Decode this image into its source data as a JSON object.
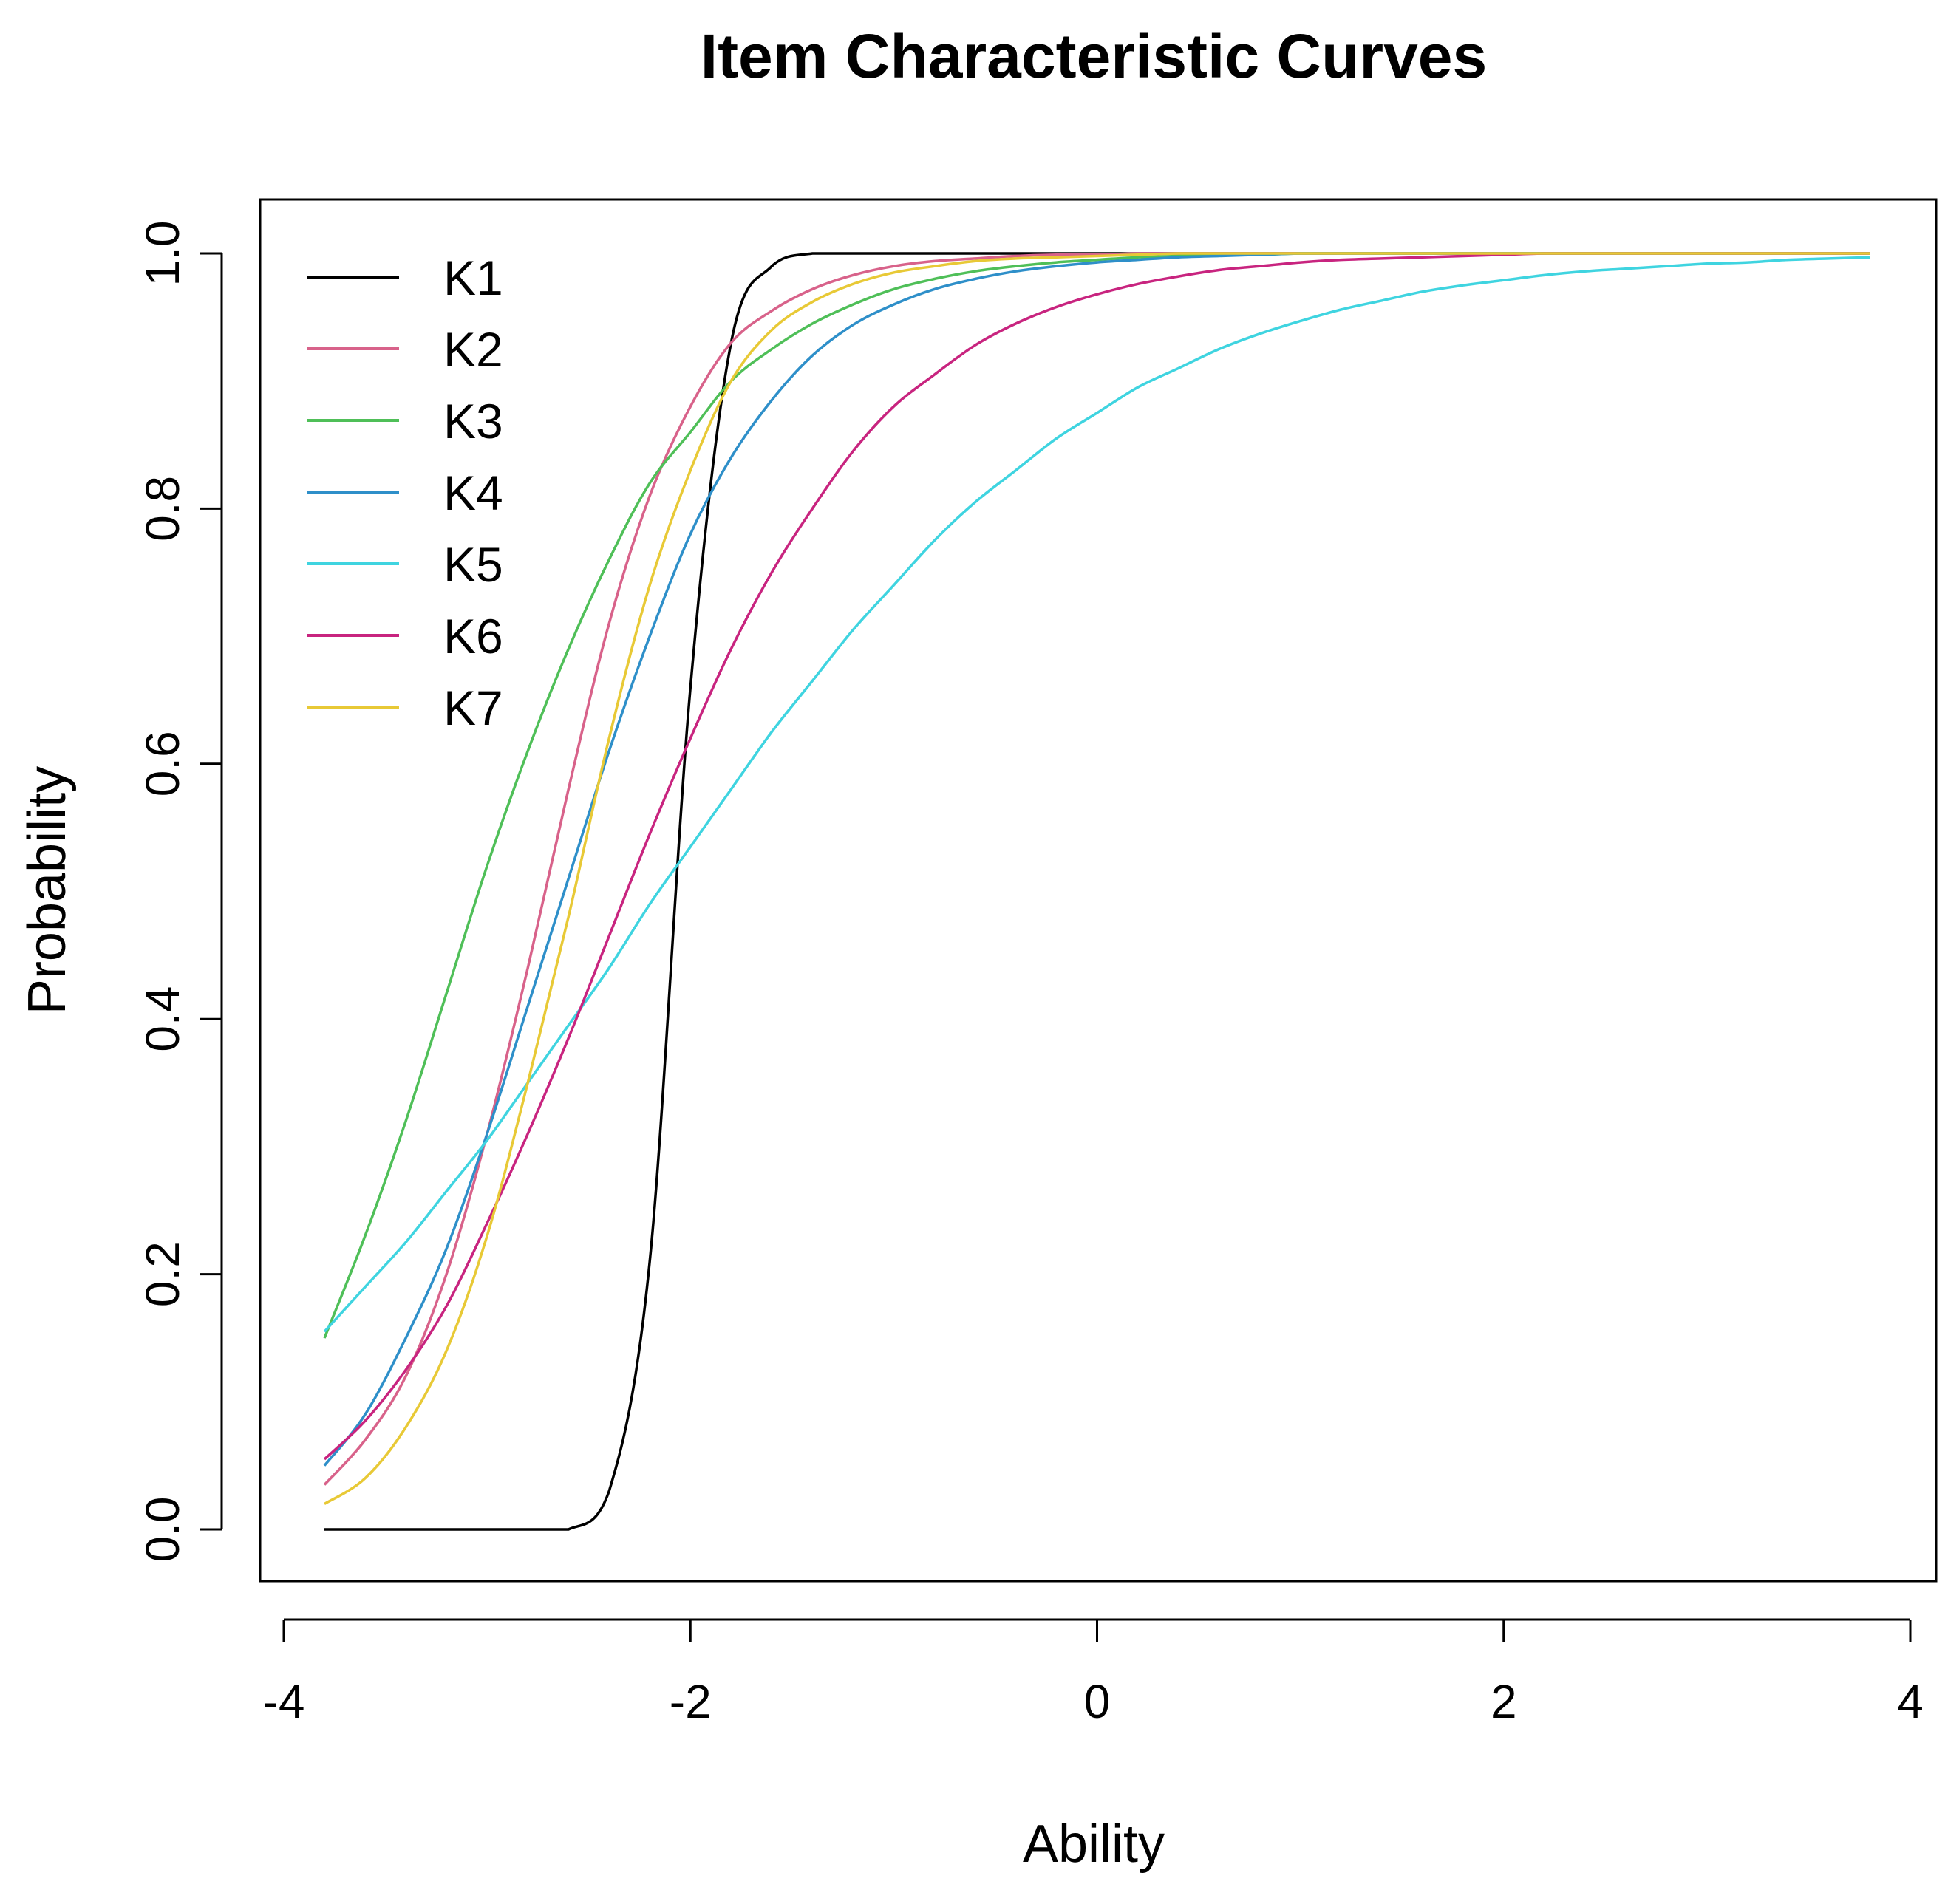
{
  "chart_data": {
    "type": "line",
    "title": "Item Characteristic Curves",
    "xlabel": "Ability",
    "ylabel": "Probability",
    "xlim": [
      -4,
      4
    ],
    "ylim": [
      0,
      1
    ],
    "x_ticks": [
      -4,
      -2,
      0,
      2,
      4
    ],
    "x_tick_labels": [
      "-4",
      "-2",
      "0",
      "2",
      "4"
    ],
    "y_ticks": [
      0.0,
      0.2,
      0.4,
      0.6,
      0.8,
      1.0
    ],
    "y_tick_labels": [
      "0.0",
      "0.2",
      "0.4",
      "0.6",
      "0.8",
      "1.0"
    ],
    "grid": false,
    "legend_position": "top-left",
    "x": [
      -3.8,
      -3.6,
      -3.4,
      -3.2,
      -3.0,
      -2.8,
      -2.6,
      -2.4,
      -2.2,
      -2.0,
      -1.8,
      -1.6,
      -1.4,
      -1.2,
      -1.0,
      -0.8,
      -0.6,
      -0.4,
      -0.2,
      0.0,
      0.2,
      0.4,
      0.6,
      0.8,
      1.0,
      1.2,
      1.4,
      1.6,
      1.8,
      2.0,
      2.2,
      2.4,
      2.6,
      2.8,
      3.0,
      3.2,
      3.4,
      3.6,
      3.8
    ],
    "series": [
      {
        "name": "K1",
        "color": "#000000",
        "values": [
          0.0,
          0.0,
          0.0,
          0.0,
          0.0,
          0.0,
          0.0,
          0.03,
          0.21,
          0.66,
          0.93,
          0.99,
          1.0,
          1.0,
          1.0,
          1.0,
          1.0,
          1.0,
          1.0,
          1.0,
          1.0,
          1.0,
          1.0,
          1.0,
          1.0,
          1.0,
          1.0,
          1.0,
          1.0,
          1.0,
          1.0,
          1.0,
          1.0,
          1.0,
          1.0,
          1.0,
          1.0,
          1.0,
          1.0
        ]
      },
      {
        "name": "K2",
        "color": "#d8628a",
        "values": [
          0.035,
          0.07,
          0.12,
          0.2,
          0.31,
          0.44,
          0.58,
          0.71,
          0.81,
          0.88,
          0.93,
          0.955,
          0.972,
          0.983,
          0.99,
          0.994,
          0.996,
          0.998,
          0.999,
          0.999,
          1.0,
          1.0,
          1.0,
          1.0,
          1.0,
          1.0,
          1.0,
          1.0,
          1.0,
          1.0,
          1.0,
          1.0,
          1.0,
          1.0,
          1.0,
          1.0,
          1.0,
          1.0,
          1.0
        ]
      },
      {
        "name": "K3",
        "color": "#4fbf58",
        "values": [
          0.15,
          0.23,
          0.32,
          0.42,
          0.52,
          0.61,
          0.69,
          0.76,
          0.82,
          0.86,
          0.9,
          0.925,
          0.945,
          0.96,
          0.972,
          0.98,
          0.986,
          0.99,
          0.993,
          0.995,
          0.997,
          0.998,
          0.999,
          0.999,
          1.0,
          1.0,
          1.0,
          1.0,
          1.0,
          1.0,
          1.0,
          1.0,
          1.0,
          1.0,
          1.0,
          1.0,
          1.0,
          1.0,
          1.0
        ]
      },
      {
        "name": "K4",
        "color": "#2e8fc9",
        "values": [
          0.05,
          0.09,
          0.15,
          0.22,
          0.31,
          0.41,
          0.51,
          0.61,
          0.7,
          0.78,
          0.84,
          0.885,
          0.92,
          0.944,
          0.96,
          0.972,
          0.98,
          0.986,
          0.99,
          0.993,
          0.995,
          0.997,
          0.998,
          0.999,
          1.0,
          1.0,
          1.0,
          1.0,
          1.0,
          1.0,
          1.0,
          1.0,
          1.0,
          1.0,
          1.0,
          1.0,
          1.0,
          1.0,
          1.0
        ]
      },
      {
        "name": "K5",
        "color": "#3fd4e0",
        "values": [
          0.155,
          0.19,
          0.225,
          0.265,
          0.305,
          0.35,
          0.395,
          0.44,
          0.49,
          0.535,
          0.58,
          0.625,
          0.665,
          0.705,
          0.74,
          0.775,
          0.805,
          0.83,
          0.855,
          0.875,
          0.895,
          0.91,
          0.925,
          0.937,
          0.947,
          0.956,
          0.963,
          0.97,
          0.975,
          0.979,
          0.983,
          0.986,
          0.988,
          0.99,
          0.992,
          0.993,
          0.995,
          0.996,
          0.997
        ]
      },
      {
        "name": "K6",
        "color": "#c8247f",
        "values": [
          0.055,
          0.085,
          0.125,
          0.175,
          0.24,
          0.31,
          0.385,
          0.465,
          0.545,
          0.62,
          0.69,
          0.75,
          0.8,
          0.845,
          0.88,
          0.905,
          0.928,
          0.945,
          0.958,
          0.968,
          0.976,
          0.982,
          0.987,
          0.99,
          0.993,
          0.995,
          0.996,
          0.997,
          0.998,
          0.999,
          1.0,
          1.0,
          1.0,
          1.0,
          1.0,
          1.0,
          1.0,
          1.0,
          1.0
        ]
      },
      {
        "name": "K7",
        "color": "#e8c936",
        "values": [
          0.02,
          0.04,
          0.08,
          0.14,
          0.23,
          0.35,
          0.48,
          0.62,
          0.74,
          0.83,
          0.9,
          0.94,
          0.962,
          0.976,
          0.985,
          0.99,
          0.994,
          0.996,
          0.997,
          0.998,
          0.999,
          1.0,
          1.0,
          1.0,
          1.0,
          1.0,
          1.0,
          1.0,
          1.0,
          1.0,
          1.0,
          1.0,
          1.0,
          1.0,
          1.0,
          1.0,
          1.0,
          1.0,
          1.0
        ]
      }
    ]
  }
}
